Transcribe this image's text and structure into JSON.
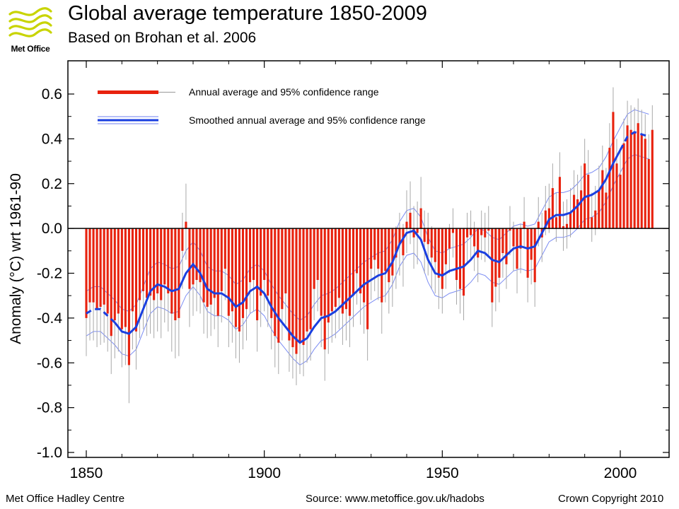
{
  "logo": {
    "text": "Met Office",
    "accent": "#c8d400"
  },
  "title": "Global average temperature 1850-2009",
  "subtitle": "Based on Brohan et al. 2006",
  "footer": {
    "left": "Met Office Hadley Centre",
    "source": "Source: www.metoffice.gov.uk/hadobs",
    "copyright": "Crown Copyright 2010"
  },
  "chart_data": {
    "type": "bar",
    "title": "Global average temperature 1850-2009",
    "subtitle": "Based on Brohan et al. 2006",
    "ylabel": "Anomaly (°C) wrt 1961-90",
    "xlabel": "",
    "xlim": [
      1850,
      2009
    ],
    "ylim": [
      -1.0,
      0.6
    ],
    "xticks": [
      "1850",
      "1900",
      "1950",
      "2000"
    ],
    "yticks": [
      "0.6",
      "0.4",
      "0.2",
      "0.0",
      "-0.2",
      "-0.4",
      "-0.6",
      "-0.8",
      "-1.0"
    ],
    "grid": false,
    "legend_position": "top-left",
    "legend": [
      "Annual average and 95% confidence range",
      "Smoothed annual average and 95% confidence range"
    ],
    "colors": {
      "annual": "#e8220e",
      "smoothed": "#1a3fe0",
      "smoothed_band": "#6d7ff2",
      "error": "#a8a8a8"
    },
    "years": [
      1850,
      1851,
      1852,
      1853,
      1854,
      1855,
      1856,
      1857,
      1858,
      1859,
      1860,
      1861,
      1862,
      1863,
      1864,
      1865,
      1866,
      1867,
      1868,
      1869,
      1870,
      1871,
      1872,
      1873,
      1874,
      1875,
      1876,
      1877,
      1878,
      1879,
      1880,
      1881,
      1882,
      1883,
      1884,
      1885,
      1886,
      1887,
      1888,
      1889,
      1890,
      1891,
      1892,
      1893,
      1894,
      1895,
      1896,
      1897,
      1898,
      1899,
      1900,
      1901,
      1902,
      1903,
      1904,
      1905,
      1906,
      1907,
      1908,
      1909,
      1910,
      1911,
      1912,
      1913,
      1914,
      1915,
      1916,
      1917,
      1918,
      1919,
      1920,
      1921,
      1922,
      1923,
      1924,
      1925,
      1926,
      1927,
      1928,
      1929,
      1930,
      1931,
      1932,
      1933,
      1934,
      1935,
      1936,
      1937,
      1938,
      1939,
      1940,
      1941,
      1942,
      1943,
      1944,
      1945,
      1946,
      1947,
      1948,
      1949,
      1950,
      1951,
      1952,
      1953,
      1954,
      1955,
      1956,
      1957,
      1958,
      1959,
      1960,
      1961,
      1962,
      1963,
      1964,
      1965,
      1966,
      1967,
      1968,
      1969,
      1970,
      1971,
      1972,
      1973,
      1974,
      1975,
      1976,
      1977,
      1978,
      1979,
      1980,
      1981,
      1982,
      1983,
      1984,
      1985,
      1986,
      1987,
      1988,
      1989,
      1990,
      1991,
      1992,
      1993,
      1994,
      1995,
      1996,
      1997,
      1998,
      1999,
      2000,
      2001,
      2002,
      2003,
      2004,
      2005,
      2006,
      2007,
      2008,
      2009
    ],
    "series": [
      {
        "name": "Annual average and 95% confidence range",
        "values": [
          -0.4,
          -0.33,
          -0.33,
          -0.36,
          -0.35,
          -0.34,
          -0.38,
          -0.48,
          -0.41,
          -0.38,
          -0.45,
          -0.44,
          -0.61,
          -0.37,
          -0.46,
          -0.32,
          -0.28,
          -0.31,
          -0.3,
          -0.32,
          -0.29,
          -0.32,
          -0.25,
          -0.29,
          -0.38,
          -0.41,
          -0.4,
          -0.1,
          0.03,
          -0.27,
          -0.25,
          -0.23,
          -0.24,
          -0.33,
          -0.35,
          -0.34,
          -0.31,
          -0.39,
          -0.28,
          -0.18,
          -0.39,
          -0.37,
          -0.44,
          -0.46,
          -0.4,
          -0.36,
          -0.24,
          -0.23,
          -0.41,
          -0.3,
          -0.23,
          -0.3,
          -0.4,
          -0.48,
          -0.51,
          -0.36,
          -0.29,
          -0.5,
          -0.53,
          -0.56,
          -0.51,
          -0.52,
          -0.46,
          -0.45,
          -0.27,
          -0.23,
          -0.39,
          -0.54,
          -0.42,
          -0.37,
          -0.35,
          -0.31,
          -0.38,
          -0.36,
          -0.39,
          -0.3,
          -0.2,
          -0.29,
          -0.33,
          -0.45,
          -0.18,
          -0.14,
          -0.18,
          -0.33,
          -0.19,
          -0.24,
          -0.21,
          -0.13,
          -0.07,
          -0.12,
          0.03,
          0.07,
          -0.04,
          -0.02,
          0.09,
          -0.06,
          -0.07,
          -0.13,
          -0.15,
          -0.22,
          -0.27,
          -0.16,
          -0.09,
          -0.02,
          -0.23,
          -0.27,
          -0.3,
          -0.04,
          -0.03,
          -0.08,
          -0.13,
          -0.03,
          -0.04,
          -0.01,
          -0.33,
          -0.26,
          -0.22,
          -0.11,
          -0.16,
          -0.01,
          -0.08,
          -0.18,
          -0.09,
          0.03,
          -0.22,
          -0.14,
          -0.24,
          0.03,
          -0.04,
          0.08,
          0.09,
          0.18,
          0.05,
          0.23,
          0.01,
          0.02,
          0.07,
          0.15,
          0.13,
          0.17,
          0.29,
          0.24,
          0.05,
          0.08,
          0.17,
          0.26,
          0.16,
          0.36,
          0.52,
          0.29,
          0.24,
          0.38,
          0.46,
          0.44,
          0.43,
          0.47,
          0.42,
          0.4,
          0.31,
          0.44
        ]
      },
      {
        "name": "Smoothed annual average and 95% confidence range",
        "x": [
          1850,
          1852,
          1854,
          1856,
          1858,
          1860,
          1862,
          1864,
          1866,
          1868,
          1870,
          1872,
          1874,
          1876,
          1878,
          1880,
          1882,
          1884,
          1886,
          1888,
          1890,
          1892,
          1894,
          1896,
          1898,
          1900,
          1902,
          1904,
          1906,
          1908,
          1910,
          1912,
          1914,
          1916,
          1918,
          1920,
          1922,
          1924,
          1926,
          1928,
          1930,
          1932,
          1934,
          1936,
          1938,
          1940,
          1942,
          1944,
          1946,
          1948,
          1950,
          1952,
          1954,
          1956,
          1958,
          1960,
          1962,
          1964,
          1966,
          1968,
          1970,
          1972,
          1974,
          1976,
          1978,
          1980,
          1982,
          1984,
          1986,
          1988,
          1990,
          1992,
          1994,
          1996,
          1998,
          2000,
          2002,
          2004,
          2006,
          2008
        ],
        "values": [
          -0.38,
          -0.36,
          -0.36,
          -0.39,
          -0.42,
          -0.46,
          -0.47,
          -0.44,
          -0.36,
          -0.28,
          -0.25,
          -0.26,
          -0.28,
          -0.27,
          -0.2,
          -0.16,
          -0.2,
          -0.27,
          -0.29,
          -0.29,
          -0.31,
          -0.35,
          -0.33,
          -0.28,
          -0.26,
          -0.29,
          -0.35,
          -0.4,
          -0.44,
          -0.48,
          -0.51,
          -0.49,
          -0.44,
          -0.4,
          -0.39,
          -0.37,
          -0.34,
          -0.31,
          -0.28,
          -0.25,
          -0.23,
          -0.21,
          -0.2,
          -0.15,
          -0.07,
          -0.02,
          -0.01,
          -0.05,
          -0.14,
          -0.2,
          -0.21,
          -0.19,
          -0.18,
          -0.17,
          -0.14,
          -0.1,
          -0.11,
          -0.14,
          -0.15,
          -0.12,
          -0.09,
          -0.08,
          -0.09,
          -0.08,
          -0.02,
          0.04,
          0.06,
          0.06,
          0.07,
          0.1,
          0.14,
          0.15,
          0.17,
          0.22,
          0.29,
          0.35,
          0.41,
          0.43,
          0.42,
          0.41
        ]
      }
    ]
  }
}
